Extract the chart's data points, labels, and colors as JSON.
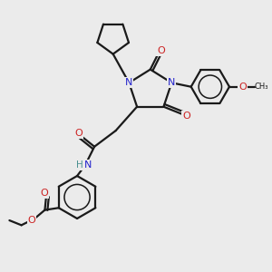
{
  "bg_color": "#ebebeb",
  "bond_color": "#1a1a1a",
  "N_color": "#2222cc",
  "O_color": "#cc2222",
  "H_color": "#4a9090",
  "lw": 1.6,
  "figsize": [
    3.0,
    3.0
  ],
  "dpi": 100,
  "xlim": [
    0,
    10
  ],
  "ylim": [
    0,
    10
  ]
}
